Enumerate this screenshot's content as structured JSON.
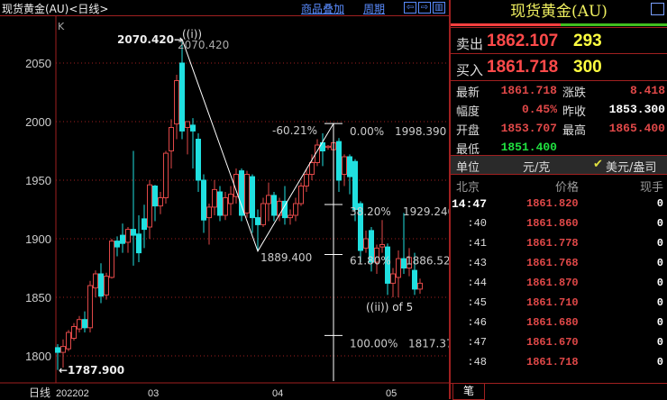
{
  "titlebar": {
    "title": "现货黄金(AU)<日线>",
    "overlay_link": "商品叠加",
    "period_link": "周期",
    "nav_icons": [
      "arrow-left-icon",
      "arrow-right-icon",
      "layout-icon"
    ]
  },
  "chart": {
    "indicator_label": "K",
    "y_ticks": [
      2050,
      2000,
      1950,
      1900,
      1850,
      1800
    ],
    "y_tick_labels": [
      "2050",
      "2000",
      "1950",
      "1900",
      "1850",
      "1800"
    ],
    "period_label": "日线",
    "x_labels": [
      {
        "label": "202202",
        "index": 0
      },
      {
        "label": "03",
        "index": 17
      },
      {
        "label": "04",
        "index": 40
      },
      {
        "label": "05",
        "index": 61
      }
    ],
    "high_marker": "2070.420→",
    "high_value": "2070.420",
    "wave_label_top": "((i))",
    "low_marker": "←1787.900",
    "swing_low": "1889.400",
    "retrace_pct": "-60.21%",
    "wave_label_bottom": "((ii)) of 5",
    "fib_levels": [
      {
        "pct": "0.00%",
        "price": "1998.390",
        "value": 1998.39
      },
      {
        "pct": "38.20%",
        "price": "1929.240",
        "value": 1929.24
      },
      {
        "pct": "61.80%",
        "price": "1886.520",
        "value": 1886.52
      },
      {
        "pct": "100.00%",
        "price": "1817.37",
        "value": 1817.37
      }
    ],
    "colors": {
      "up": "#e04848",
      "down": "#20e0e0",
      "grid": "#a02020",
      "line": "#ffffff"
    },
    "candles": [
      [
        1807,
        1810,
        1788,
        1803
      ],
      [
        1803,
        1814,
        1790,
        1808
      ],
      [
        1806,
        1822,
        1804,
        1820
      ],
      [
        1815,
        1828,
        1813,
        1825
      ],
      [
        1823,
        1834,
        1820,
        1831
      ],
      [
        1831,
        1838,
        1820,
        1824
      ],
      [
        1824,
        1864,
        1820,
        1860
      ],
      [
        1858,
        1873,
        1850,
        1870
      ],
      [
        1870,
        1879,
        1845,
        1851
      ],
      [
        1852,
        1871,
        1848,
        1868
      ],
      [
        1867,
        1900,
        1866,
        1898
      ],
      [
        1898,
        1902,
        1885,
        1893
      ],
      [
        1903,
        1913,
        1888,
        1896
      ],
      [
        1897,
        1910,
        1888,
        1908
      ],
      [
        1908,
        1975,
        1877,
        1903
      ],
      [
        1904,
        1920,
        1880,
        1888
      ],
      [
        1917,
        1929,
        1892,
        1908
      ],
      [
        1910,
        1950,
        1900,
        1946
      ],
      [
        1945,
        1946,
        1915,
        1928
      ],
      [
        1928,
        1940,
        1921,
        1935
      ],
      [
        1935,
        1975,
        1930,
        1973
      ],
      [
        1975,
        2002,
        1960,
        1995
      ],
      [
        1998,
        2040,
        1985,
        2035
      ],
      [
        2050,
        2070.42,
        1985,
        1992
      ],
      [
        1995,
        2000,
        1972,
        2000
      ],
      [
        1997,
        2003,
        1960,
        1992
      ],
      [
        1985,
        1990,
        1940,
        1950
      ],
      [
        1950,
        1955,
        1905,
        1916
      ],
      [
        1918,
        1930,
        1895,
        1927
      ],
      [
        1927,
        1950,
        1920,
        1942
      ],
      [
        1940,
        1945,
        1915,
        1920
      ],
      [
        1920,
        1940,
        1916,
        1935
      ],
      [
        1930,
        1945,
        1920,
        1938
      ],
      [
        1936,
        1960,
        1930,
        1955
      ],
      [
        1958,
        1960,
        1915,
        1920
      ],
      [
        1922,
        1958,
        1918,
        1955
      ],
      [
        1953,
        1955,
        1905,
        1918
      ],
      [
        1918,
        1925,
        1889.4,
        1912
      ],
      [
        1912,
        1935,
        1910,
        1930
      ],
      [
        1930,
        1948,
        1915,
        1937
      ],
      [
        1937,
        1940,
        1915,
        1920
      ],
      [
        1920,
        1935,
        1915,
        1932
      ],
      [
        1932,
        1945,
        1912,
        1918
      ],
      [
        1918,
        1925,
        1912,
        1920
      ],
      [
        1920,
        1935,
        1915,
        1930
      ],
      [
        1930,
        1948,
        1928,
        1945
      ],
      [
        1945,
        1960,
        1940,
        1955
      ],
      [
        1955,
        1972,
        1950,
        1965
      ],
      [
        1965,
        1985,
        1962,
        1980
      ],
      [
        1982,
        1990,
        1962,
        1975
      ],
      [
        1978,
        1980,
        1976,
        1979
      ],
      [
        1976,
        1988,
        1975,
        1982
      ],
      [
        1983,
        1986,
        1940,
        1950
      ],
      [
        1955,
        1972,
        1945,
        1970
      ],
      [
        1970,
        1972,
        1938,
        1953
      ],
      [
        1966,
        1968,
        1915,
        1925
      ],
      [
        1930,
        1932,
        1880,
        1890
      ],
      [
        1892,
        1907,
        1888,
        1900
      ],
      [
        1907,
        1910,
        1872,
        1880
      ],
      [
        1880,
        1895,
        1870,
        1892
      ],
      [
        1893,
        1916,
        1888,
        1895
      ],
      [
        1893,
        1896,
        1852,
        1862
      ],
      [
        1862,
        1875,
        1850,
        1870
      ],
      [
        1867,
        1890,
        1850,
        1883
      ],
      [
        1883,
        1922,
        1870,
        1875
      ],
      [
        1875,
        1892,
        1868,
        1884
      ],
      [
        1873,
        1888,
        1852,
        1857
      ],
      [
        1857,
        1866,
        1853,
        1862
      ]
    ]
  },
  "quote": {
    "title": "现货黄金(AU)",
    "sell_label": "卖出",
    "sell_price": "1862.107",
    "sell_vol": "293",
    "buy_label": "买入",
    "buy_price": "1861.718",
    "buy_vol": "300",
    "stats": [
      {
        "label": "最新",
        "value": "1861.718",
        "color": "#e04848"
      },
      {
        "label": "涨跌",
        "value": "8.418",
        "color": "#e04848"
      },
      {
        "label": "幅度",
        "value": "0.45%",
        "color": "#e04848"
      },
      {
        "label": "昨收",
        "value": "1853.300",
        "color": "#ffffff"
      },
      {
        "label": "开盘",
        "value": "1853.707",
        "color": "#e04848"
      },
      {
        "label": "最高",
        "value": "1865.400",
        "color": "#e04848"
      },
      {
        "label": "最低",
        "value": "1851.400",
        "color": "#20e040"
      }
    ],
    "unit_label": "单位",
    "unit_cny": "元/克",
    "unit_usd": "美元/盎司",
    "unit_selected": "美元/盎司",
    "bar_colors": {
      "up": "#ff4040",
      "down": "#40c020"
    }
  },
  "ticks": {
    "headers": [
      "北京",
      "价格",
      "现手"
    ],
    "rows": [
      {
        "time": "14:47",
        "price": "1861.820",
        "vol": "0"
      },
      {
        "time": ":40",
        "price": "1861.860",
        "vol": "0"
      },
      {
        "time": ":41",
        "price": "1861.778",
        "vol": "0"
      },
      {
        "time": ":43",
        "price": "1861.768",
        "vol": "0"
      },
      {
        "time": ":44",
        "price": "1861.870",
        "vol": "0"
      },
      {
        "time": ":45",
        "price": "1861.710",
        "vol": "0"
      },
      {
        "time": ":46",
        "price": "1861.680",
        "vol": "0"
      },
      {
        "time": ":47",
        "price": "1861.670",
        "vol": "0"
      },
      {
        "time": ":48",
        "price": "1861.718",
        "vol": "0"
      }
    ],
    "tab": "笔"
  }
}
